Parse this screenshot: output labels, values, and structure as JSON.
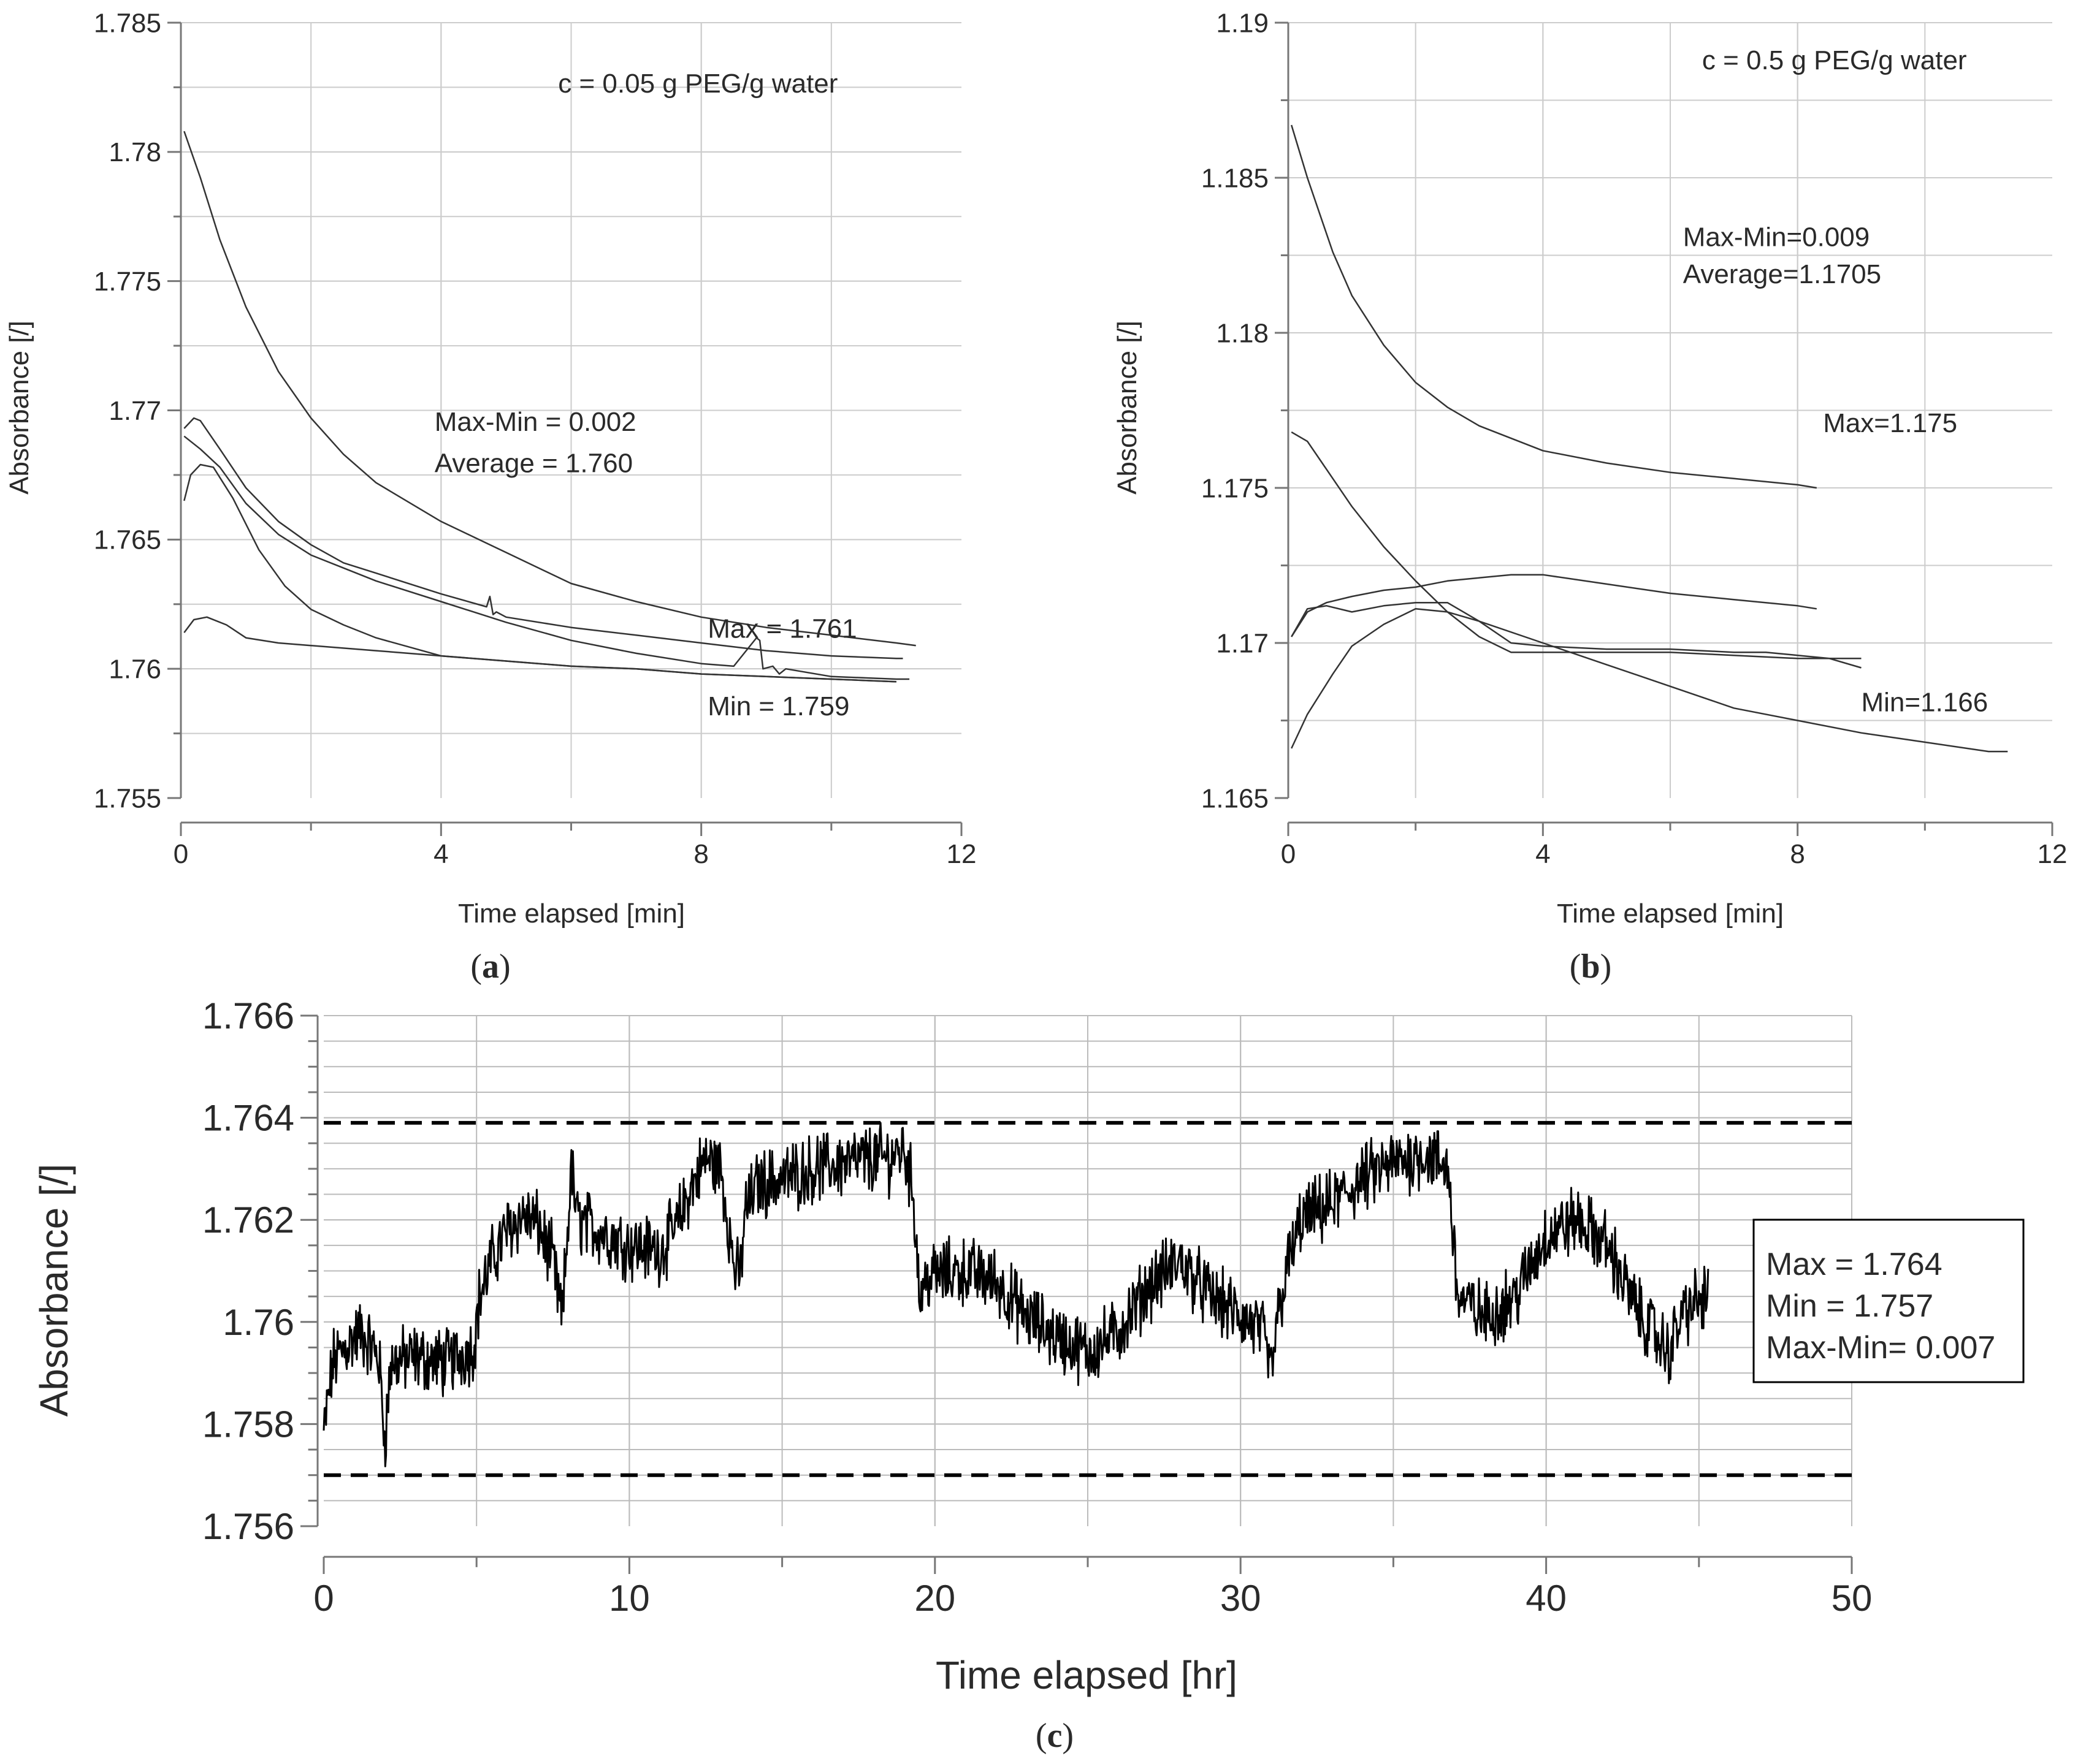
{
  "chart_data": [
    {
      "type": "line",
      "panel_label": "a",
      "xlabel": "Time elapsed [min]",
      "ylabel": "Absorbance [/]",
      "xlim": [
        0,
        12
      ],
      "ylim": [
        1.755,
        1.785
      ],
      "xticks": [
        0,
        4,
        8,
        12
      ],
      "xtick_labels": [
        "0",
        "4",
        "8",
        "12"
      ],
      "yticks": [
        1.755,
        1.76,
        1.765,
        1.77,
        1.775,
        1.78,
        1.785
      ],
      "ytick_labels": [
        "1.755",
        "1.76",
        "1.765",
        "1.77",
        "1.775",
        "1.78",
        "1.785"
      ],
      "grid": true,
      "line_color": "#333333",
      "annotations": [
        {
          "text": "c = 0.05 g PEG/g water",
          "x": 5.8,
          "y": 1.7823
        },
        {
          "text": "Max-Min = 0.002",
          "x": 3.9,
          "y": 1.7692
        },
        {
          "text": "Average = 1.760",
          "x": 3.9,
          "y": 1.7676
        },
        {
          "text": "Max = 1.761",
          "x": 8.1,
          "y": 1.7612
        },
        {
          "text": "Min = 1.759",
          "x": 8.1,
          "y": 1.7582
        }
      ],
      "series": [
        {
          "x": [
            0.05,
            0.3,
            0.6,
            1,
            1.5,
            2,
            2.5,
            3,
            4,
            5,
            6,
            7,
            8,
            9,
            10,
            11,
            11.3
          ],
          "y": [
            1.7808,
            1.779,
            1.7766,
            1.774,
            1.7715,
            1.7697,
            1.7683,
            1.7672,
            1.7657,
            1.7645,
            1.7633,
            1.7626,
            1.762,
            1.7616,
            1.7613,
            1.761,
            1.7609
          ]
        },
        {
          "x": [
            0.05,
            0.2,
            0.3,
            0.6,
            1,
            1.5,
            2,
            2.5,
            3,
            4,
            4.7,
            4.75,
            4.8,
            4.85,
            5,
            6,
            7,
            8,
            9,
            10,
            11,
            11.1
          ],
          "y": [
            1.7693,
            1.7697,
            1.7696,
            1.7685,
            1.767,
            1.7657,
            1.7648,
            1.7641,
            1.7637,
            1.7629,
            1.7624,
            1.7628,
            1.7621,
            1.7622,
            1.762,
            1.7616,
            1.7613,
            1.761,
            1.7607,
            1.7605,
            1.7604,
            1.7604
          ]
        },
        {
          "x": [
            0.05,
            0.3,
            0.6,
            1,
            1.5,
            2,
            2.5,
            3,
            4,
            5,
            6,
            7,
            8,
            8.5,
            8.85,
            8.9,
            8.95,
            9.1,
            9.2,
            9.3,
            10,
            11,
            11.2
          ],
          "y": [
            1.769,
            1.7685,
            1.7678,
            1.7664,
            1.7652,
            1.7644,
            1.7639,
            1.7634,
            1.7626,
            1.7618,
            1.7611,
            1.7606,
            1.7602,
            1.7601,
            1.7612,
            1.7611,
            1.76,
            1.7601,
            1.7598,
            1.76,
            1.7597,
            1.7596,
            1.7596
          ]
        },
        {
          "x": [
            0.05,
            0.15,
            0.3,
            0.5,
            0.8,
            1.2,
            1.6,
            2,
            2.5,
            3,
            4,
            5,
            6,
            7,
            8,
            9,
            10,
            11
          ],
          "y": [
            1.7665,
            1.7675,
            1.7679,
            1.7678,
            1.7666,
            1.7646,
            1.7632,
            1.7623,
            1.7617,
            1.7612,
            1.7605,
            1.7603,
            1.7601,
            1.76,
            1.7598,
            1.7597,
            1.7596,
            1.7595
          ]
        },
        {
          "x": [
            0.05,
            0.2,
            0.4,
            0.7,
            1,
            1.5,
            2,
            3,
            4,
            5,
            6,
            7,
            8,
            9,
            10,
            11
          ],
          "y": [
            1.7614,
            1.7619,
            1.762,
            1.7617,
            1.7612,
            1.761,
            1.7609,
            1.7607,
            1.7605,
            1.7603,
            1.7601,
            1.76,
            1.7598,
            1.7597,
            1.7596,
            1.7595
          ]
        }
      ]
    },
    {
      "type": "line",
      "panel_label": "b",
      "xlabel": "Time elapsed [min]",
      "ylabel": "Absorbance [/]",
      "xlim": [
        0,
        12
      ],
      "ylim": [
        1.165,
        1.19
      ],
      "xticks": [
        0,
        4,
        8,
        12
      ],
      "xtick_labels": [
        "0",
        "4",
        "8",
        "12"
      ],
      "yticks": [
        1.165,
        1.17,
        1.175,
        1.18,
        1.185,
        1.19
      ],
      "ytick_labels": [
        "1.165",
        "1.17",
        "1.175",
        "1.18",
        "1.185",
        "1.19"
      ],
      "grid": true,
      "line_color": "#333333",
      "annotations": [
        {
          "text": "c = 0.5 g PEG/g water",
          "x": 6.5,
          "y": 1.1885
        },
        {
          "text": "Max-Min=0.009",
          "x": 6.2,
          "y": 1.1828
        },
        {
          "text": "Average=1.1705",
          "x": 6.2,
          "y": 1.1816
        },
        {
          "text": "Max=1.175",
          "x": 8.4,
          "y": 1.1768
        },
        {
          "text": "Min=1.166",
          "x": 9.0,
          "y": 1.1678
        }
      ],
      "series": [
        {
          "x": [
            0.05,
            0.3,
            0.7,
            1,
            1.5,
            2,
            2.5,
            3,
            4,
            5,
            6,
            7,
            8,
            8.3
          ],
          "y": [
            1.1867,
            1.185,
            1.1826,
            1.1812,
            1.1796,
            1.1784,
            1.1776,
            1.177,
            1.1762,
            1.1758,
            1.1755,
            1.1753,
            1.1751,
            1.175
          ]
        },
        {
          "x": [
            0.05,
            0.3,
            0.6,
            1,
            1.5,
            2,
            2.5,
            3,
            3.5,
            4,
            5,
            6,
            7,
            8,
            8.6,
            9.0
          ],
          "y": [
            1.1768,
            1.1765,
            1.1756,
            1.1744,
            1.1731,
            1.172,
            1.171,
            1.1702,
            1.1697,
            1.1697,
            1.1697,
            1.1697,
            1.1696,
            1.1695,
            1.1695,
            1.1695
          ]
        },
        {
          "x": [
            0.05,
            0.3,
            0.6,
            1,
            1.5,
            2,
            2.5,
            3,
            3.5,
            4,
            5,
            6,
            7,
            8,
            8.3
          ],
          "y": [
            1.1702,
            1.171,
            1.1713,
            1.1715,
            1.1717,
            1.1718,
            1.172,
            1.1721,
            1.1722,
            1.1722,
            1.1719,
            1.1716,
            1.1714,
            1.1712,
            1.1711
          ]
        },
        {
          "x": [
            0.05,
            0.3,
            0.6,
            1,
            1.5,
            2,
            2.5,
            3,
            3.5,
            4,
            5,
            6,
            7,
            7.5,
            8,
            8.5,
            9.0
          ],
          "y": [
            1.1702,
            1.1711,
            1.1712,
            1.171,
            1.1712,
            1.1713,
            1.1713,
            1.1707,
            1.17,
            1.1699,
            1.1698,
            1.1698,
            1.1697,
            1.1697,
            1.1696,
            1.1695,
            1.1692
          ]
        },
        {
          "x": [
            0.05,
            0.3,
            0.7,
            1,
            1.5,
            2,
            2.5,
            3,
            4,
            5,
            6,
            7,
            8,
            9,
            10,
            11,
            11.3
          ],
          "y": [
            1.1666,
            1.1677,
            1.169,
            1.1699,
            1.1706,
            1.1711,
            1.171,
            1.1707,
            1.17,
            1.1693,
            1.1686,
            1.1679,
            1.1675,
            1.1671,
            1.1668,
            1.1665,
            1.1665
          ]
        }
      ]
    },
    {
      "type": "line",
      "panel_label": "c",
      "xlabel": "Time elapsed [hr]",
      "ylabel": "Absorbance [/]",
      "xlim": [
        0,
        50
      ],
      "ylim": [
        1.756,
        1.766
      ],
      "xticks": [
        0,
        10,
        20,
        30,
        40,
        50
      ],
      "xtick_labels": [
        "0",
        "10",
        "20",
        "30",
        "40",
        "50"
      ],
      "yticks": [
        1.756,
        1.758,
        1.76,
        1.762,
        1.764,
        1.766
      ],
      "ytick_labels": [
        "1.756",
        "1.758",
        "1.76",
        "1.762",
        "1.764",
        "1.766"
      ],
      "grid": true,
      "line_color": "#000000",
      "max_line": 1.7639,
      "min_line": 1.757,
      "legend_box": [
        "Max = 1.764",
        "Min = 1.757",
        "Max-Min= 0.007"
      ],
      "series": [
        {
          "x": [
            0,
            0.3,
            0.7,
            1.2,
            1.8,
            2.0,
            2.2,
            3,
            4,
            4.9,
            5.1,
            5.5,
            6,
            6.5,
            7,
            7.5,
            7.8,
            8.1,
            8.3,
            9,
            10,
            11,
            11.5,
            12,
            12.5,
            13,
            13.4,
            13.6,
            13.8,
            14.2,
            15,
            16,
            17,
            18,
            18.5,
            19.0,
            19.3,
            19.5,
            19.8,
            21,
            22,
            23,
            24,
            25,
            26,
            27,
            28,
            29,
            30,
            30.7,
            31.0,
            31.2,
            31.5,
            32,
            33,
            34,
            35,
            36,
            36.8,
            37.1,
            37.5,
            38,
            39,
            40,
            41,
            42,
            43,
            44,
            44.5,
            45.3
          ],
          "y": [
            1.7578,
            1.7592,
            1.7595,
            1.7598,
            1.7593,
            1.7577,
            1.7592,
            1.7593,
            1.7592,
            1.7595,
            1.7605,
            1.7612,
            1.7618,
            1.7621,
            1.7619,
            1.7612,
            1.76,
            1.763,
            1.762,
            1.7618,
            1.7615,
            1.7614,
            1.7618,
            1.7626,
            1.7632,
            1.763,
            1.7612,
            1.7608,
            1.7622,
            1.7627,
            1.7628,
            1.763,
            1.7631,
            1.7632,
            1.7632,
            1.7634,
            1.7625,
            1.7605,
            1.7609,
            1.761,
            1.7608,
            1.7601,
            1.7597,
            1.7594,
            1.7598,
            1.7607,
            1.7612,
            1.7605,
            1.7601,
            1.7598,
            1.759,
            1.76,
            1.761,
            1.762,
            1.7623,
            1.7628,
            1.7631,
            1.7633,
            1.763,
            1.7605,
            1.7603,
            1.7601,
            1.7605,
            1.7617,
            1.762,
            1.7615,
            1.7602,
            1.7594,
            1.7602,
            1.7605
          ]
        }
      ]
    }
  ]
}
